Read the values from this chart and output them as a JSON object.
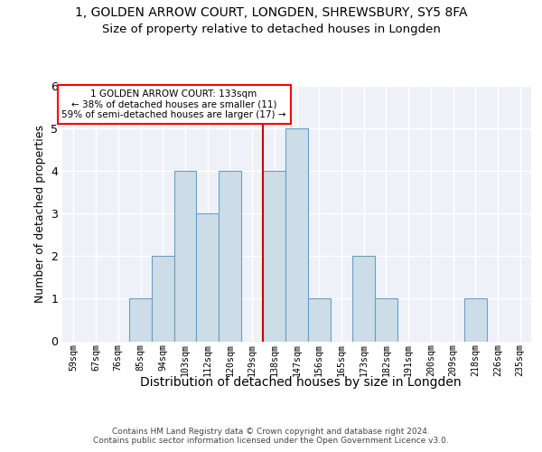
{
  "title1": "1, GOLDEN ARROW COURT, LONGDEN, SHREWSBURY, SY5 8FA",
  "title2": "Size of property relative to detached houses in Longden",
  "xlabel": "Distribution of detached houses by size in Longden",
  "ylabel": "Number of detached properties",
  "bins": [
    "59sqm",
    "67sqm",
    "76sqm",
    "85sqm",
    "94sqm",
    "103sqm",
    "112sqm",
    "120sqm",
    "129sqm",
    "138sqm",
    "147sqm",
    "156sqm",
    "165sqm",
    "173sqm",
    "182sqm",
    "191sqm",
    "200sqm",
    "209sqm",
    "218sqm",
    "226sqm",
    "235sqm"
  ],
  "values": [
    0,
    0,
    0,
    1,
    2,
    4,
    3,
    4,
    0,
    4,
    5,
    1,
    0,
    2,
    1,
    0,
    0,
    0,
    1,
    0,
    0
  ],
  "bar_color": "#ccdde8",
  "bar_edge_color": "#6b9fc0",
  "property_bin_index": 8,
  "vline_x": 8.5,
  "annotation_text": "1 GOLDEN ARROW COURT: 133sqm\n← 38% of detached houses are smaller (11)\n59% of semi-detached houses are larger (17) →",
  "vline_color": "#cc0000",
  "ylim": [
    0,
    6
  ],
  "yticks": [
    0,
    1,
    2,
    3,
    4,
    5,
    6
  ],
  "footnote": "Contains HM Land Registry data © Crown copyright and database right 2024.\nContains public sector information licensed under the Open Government Licence v3.0.",
  "bg_color": "#eef2f8",
  "grid_color": "white"
}
